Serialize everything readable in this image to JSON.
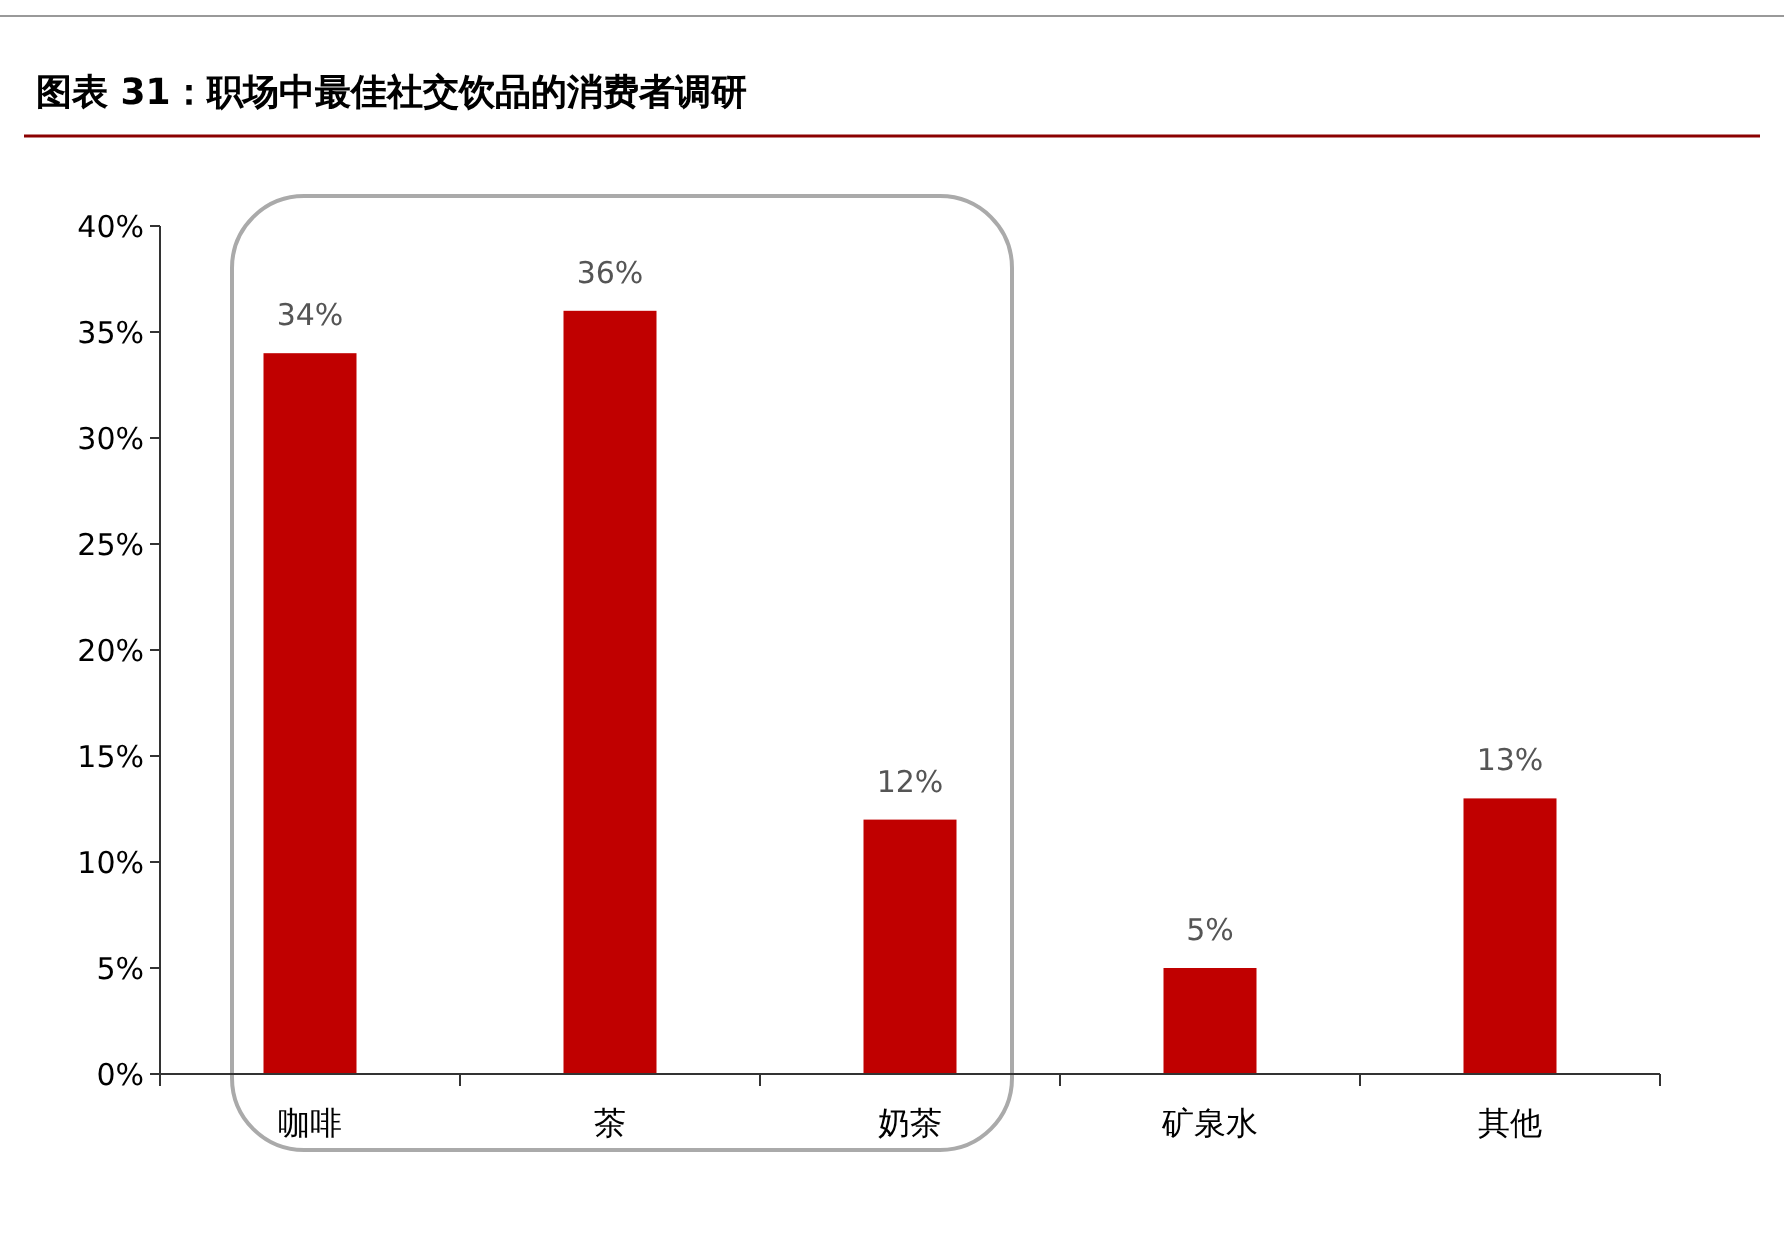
{
  "chart_data": {
    "type": "bar",
    "title": "图表 31：职场中最佳社交饮品的消费者调研",
    "categories": [
      "咖啡",
      "茶",
      "奶茶",
      "矿泉水",
      "其他"
    ],
    "values": [
      34,
      36,
      12,
      5,
      13
    ],
    "color": "#c00000",
    "value_labels": [
      "34%",
      "36%",
      "12%",
      "5%",
      "13%"
    ],
    "ylim": [
      0,
      40
    ],
    "yticks": [
      {
        "value": 0,
        "label": "0%"
      },
      {
        "value": 5,
        "label": "5%"
      },
      {
        "value": 10,
        "label": "10%"
      },
      {
        "value": 15,
        "label": "15%"
      },
      {
        "value": 20,
        "label": "20%"
      },
      {
        "value": 25,
        "label": "25%"
      },
      {
        "value": 30,
        "label": "30%"
      },
      {
        "value": 35,
        "label": "35%"
      },
      {
        "value": 40,
        "label": "40%"
      }
    ],
    "grid": false
  }
}
